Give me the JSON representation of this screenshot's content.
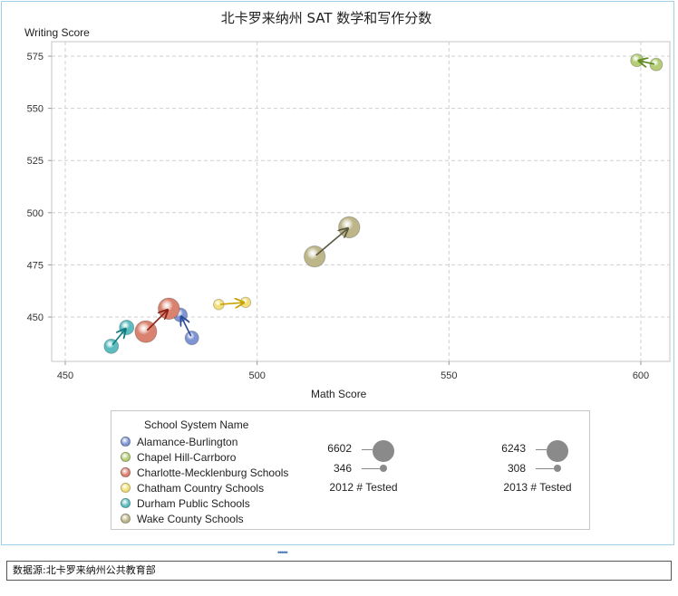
{
  "chart_data": {
    "type": "scatter",
    "title": "北卡罗来纳州 SAT 数学和写作分数",
    "xlabel": "Math Score",
    "ylabel": "Writing Score",
    "xlim": [
      450,
      607
    ],
    "ylim": [
      429,
      580
    ],
    "xticks": [
      450,
      500,
      550,
      600
    ],
    "yticks": [
      450,
      475,
      500,
      525,
      550,
      575
    ],
    "grid": true,
    "series": [
      {
        "name": "Alamance-Burlington",
        "color": "#7f95d3",
        "arrow": "#2b4a9a",
        "from": {
          "year": 2012,
          "x": 483,
          "y": 440,
          "tested": 1300
        },
        "to": {
          "year": 2013,
          "x": 480,
          "y": 451,
          "tested": 1350
        }
      },
      {
        "name": "Chapel Hill-Carrboro",
        "color": "#b5cd78",
        "arrow": "#5f8a22",
        "from": {
          "year": 2012,
          "x": 604,
          "y": 571,
          "tested": 900
        },
        "to": {
          "year": 2013,
          "x": 599,
          "y": 573,
          "tested": 950
        }
      },
      {
        "name": "Charlotte-Mecklenburg Schools",
        "color": "#d98270",
        "arrow": "#8b1f14",
        "from": {
          "year": 2012,
          "x": 471,
          "y": 443,
          "tested": 6602
        },
        "to": {
          "year": 2013,
          "x": 477,
          "y": 454,
          "tested": 6243
        }
      },
      {
        "name": "Chatham Country Schools",
        "color": "#f2df7a",
        "arrow": "#c9a400",
        "from": {
          "year": 2012,
          "x": 490,
          "y": 456,
          "tested": 346
        },
        "to": {
          "year": 2013,
          "x": 497,
          "y": 457,
          "tested": 308
        }
      },
      {
        "name": "Durham Public Schools",
        "color": "#5cbcbf",
        "arrow": "#0f7a7e",
        "from": {
          "year": 2012,
          "x": 462,
          "y": 436,
          "tested": 1600
        },
        "to": {
          "year": 2013,
          "x": 466,
          "y": 445,
          "tested": 1650
        }
      },
      {
        "name": "Wake County Schools",
        "color": "#bdb689",
        "arrow": "#5a5740",
        "from": {
          "year": 2012,
          "x": 515,
          "y": 479,
          "tested": 6000
        },
        "to": {
          "year": 2013,
          "x": 524,
          "y": 493,
          "tested": 6100
        }
      }
    ],
    "legend": {
      "title": "School System Name",
      "size_legend": [
        {
          "caption": "2012 # Tested",
          "max": 6602,
          "min": 346
        },
        {
          "caption": "2013 # Tested",
          "max": 6243,
          "min": 308
        }
      ]
    }
  },
  "footer": {
    "source": "数据源:北卡罗来纳州公共教育部",
    "handle": "•••••"
  }
}
